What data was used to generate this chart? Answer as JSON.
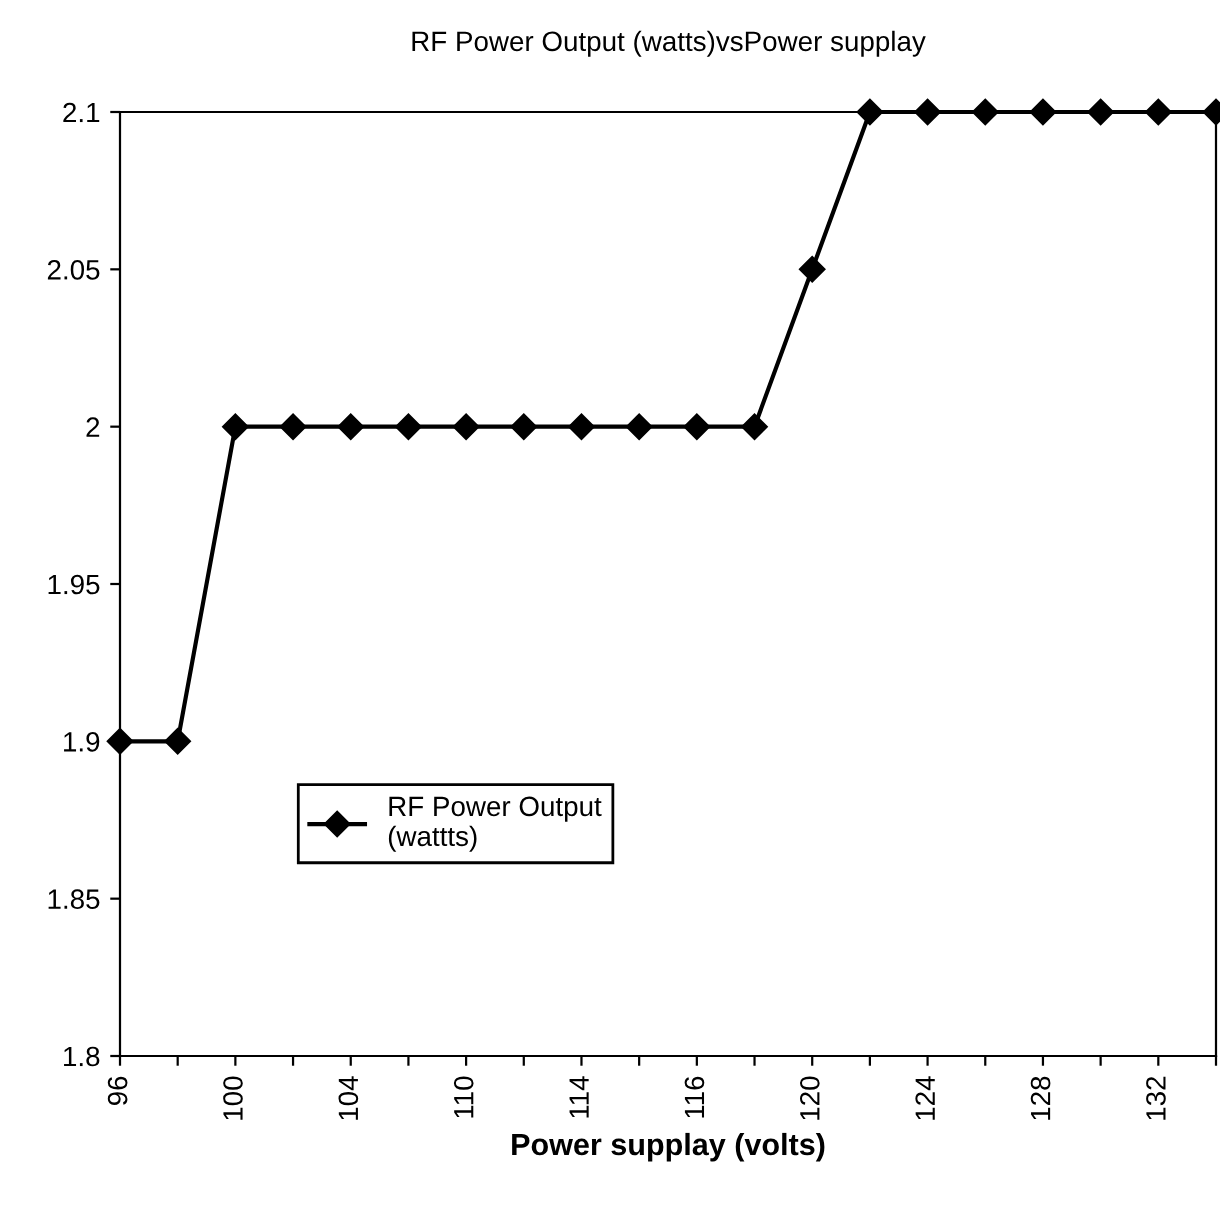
{
  "chart_data": {
    "type": "line",
    "title": "RF Power Output (watts)vsPower supplay",
    "xlabel": "Power supplay (volts)",
    "categories": [
      "96",
      null,
      "100",
      null,
      "104",
      null,
      "110",
      null,
      "114",
      null,
      "116",
      null,
      "120",
      null,
      "124",
      null,
      "128",
      null,
      "132",
      null
    ],
    "series": [
      {
        "name": "RF Power Output\n(wattts)",
        "color": "#000000",
        "values": [
          1.9,
          1.9,
          2,
          2,
          2,
          2,
          2,
          2,
          2,
          2,
          2,
          2,
          2.05,
          2.1,
          2.1,
          2.1,
          2.1,
          2.1,
          2.1,
          2.1
        ]
      }
    ],
    "ylim": [
      1.8,
      2.1
    ],
    "yticks": [
      1.8,
      1.85,
      1.9,
      1.95,
      2,
      2.05,
      2.1
    ],
    "grid": false,
    "legend": "bottom left",
    "marker": "diamond",
    "line_style": "solid"
  }
}
